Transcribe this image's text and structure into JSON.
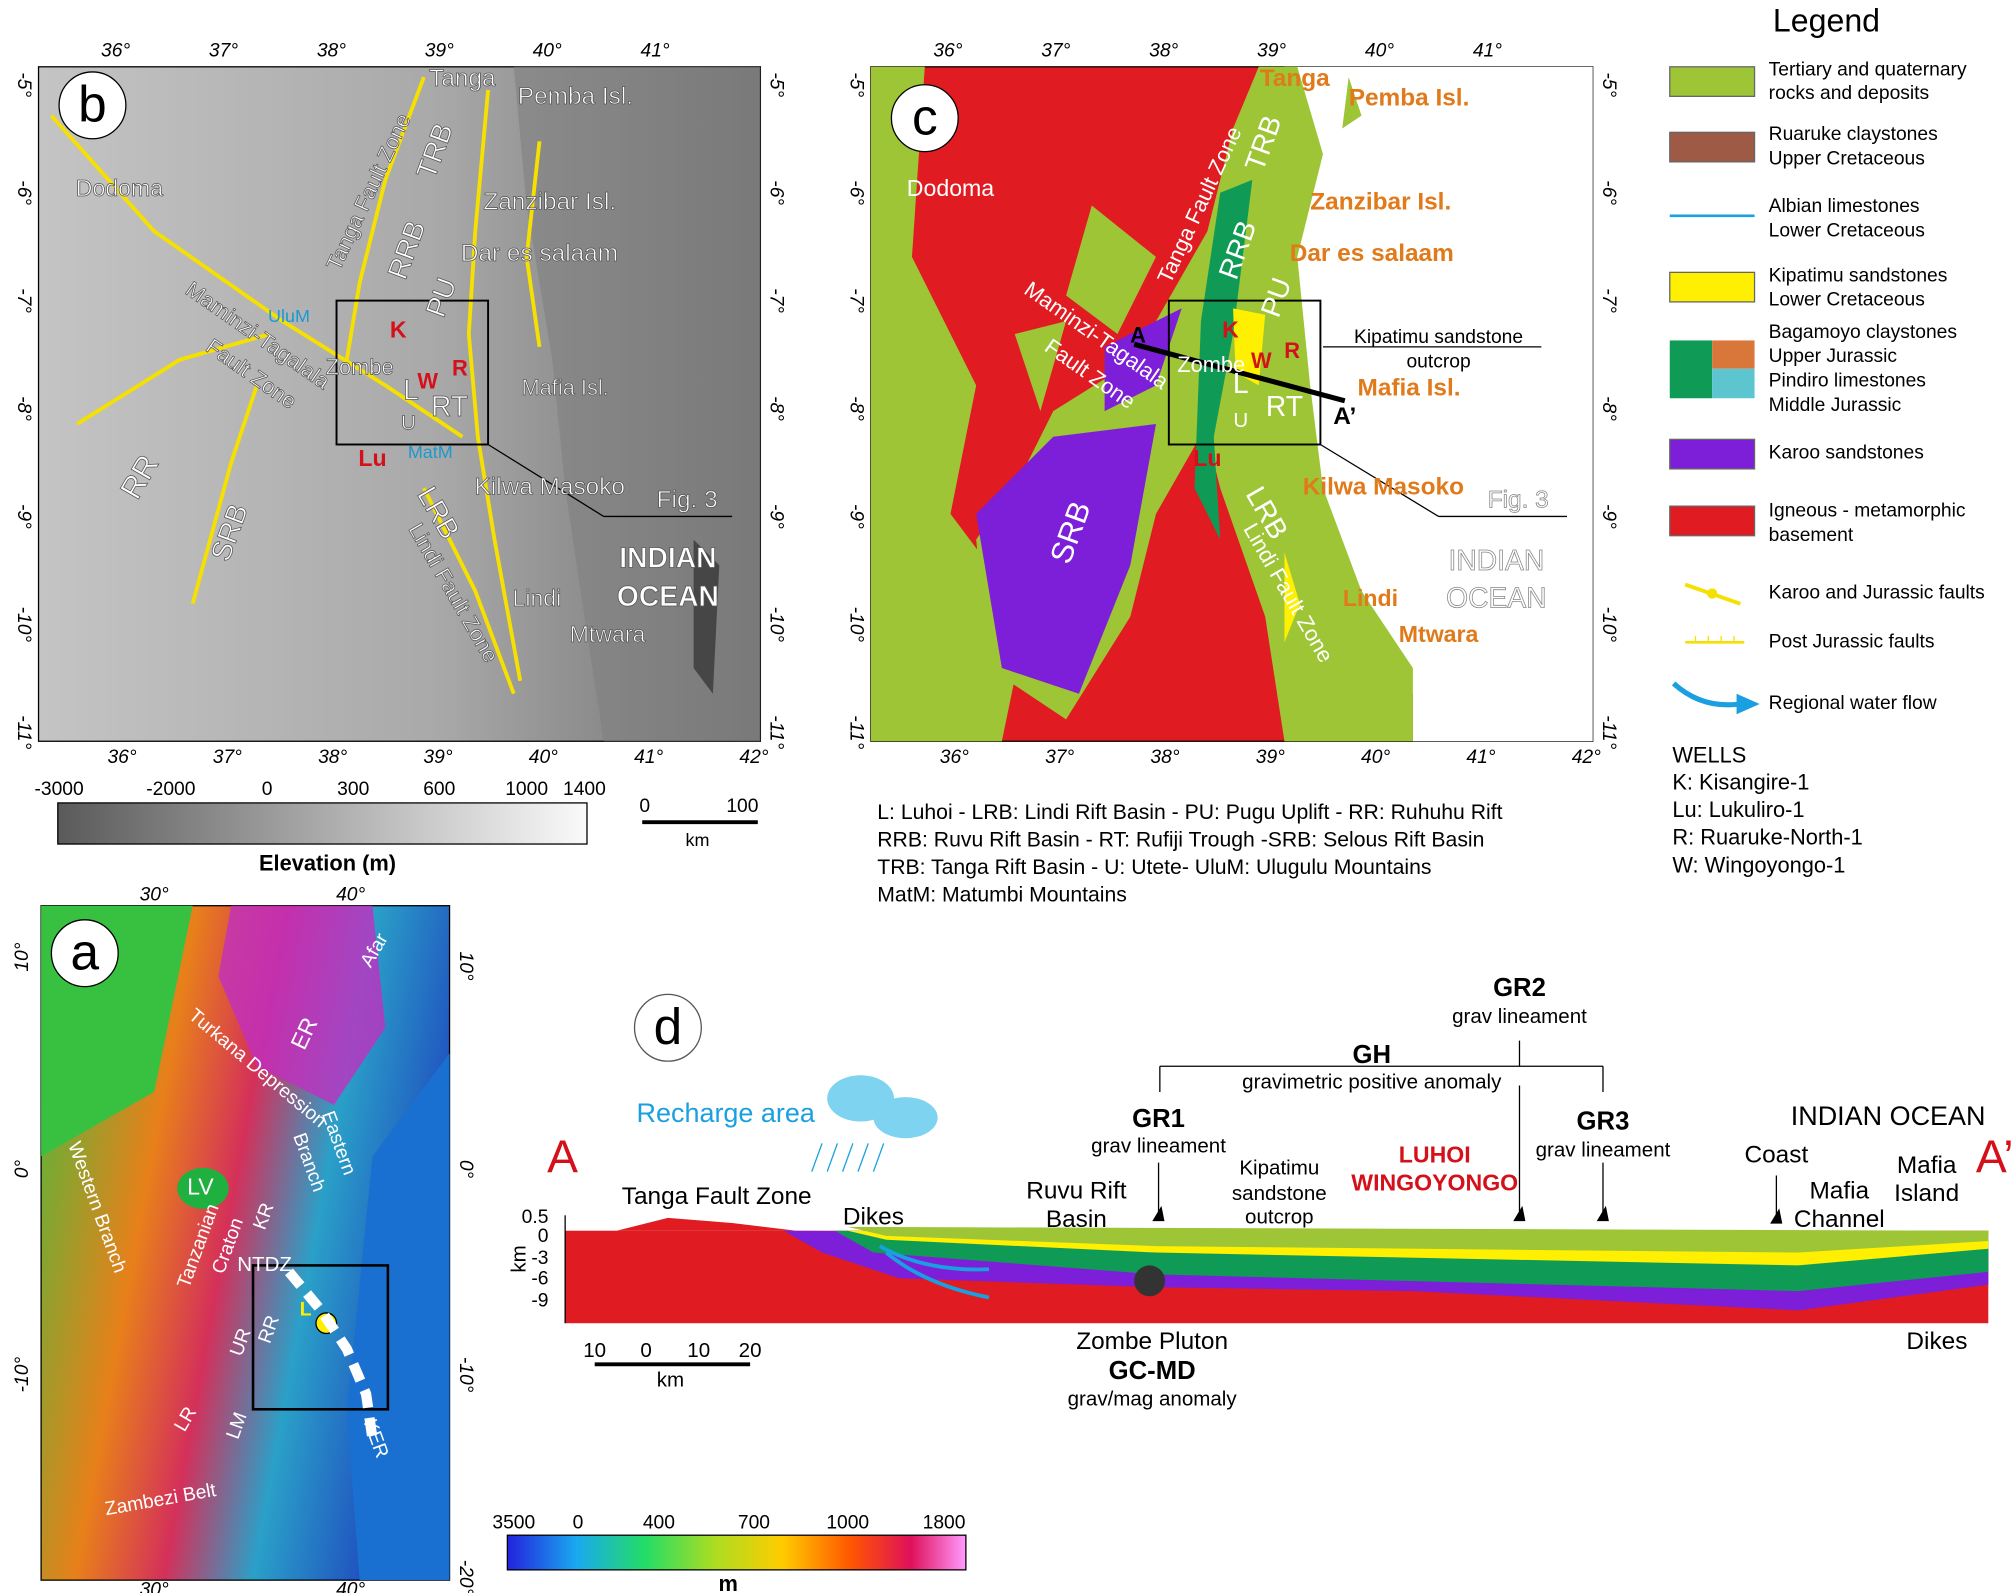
{
  "panel_b": {
    "letter": "b",
    "top_ticks": [
      "36°",
      "37°",
      "38°",
      "39°",
      "40°",
      "41°"
    ],
    "bottom_ticks": [
      "36°",
      "37°",
      "38°",
      "39°",
      "40°",
      "41°",
      "42°"
    ],
    "lat_ticks": [
      "-5°",
      "-6°",
      "-7°",
      "-8°",
      "-9°",
      "-10°",
      "-11°"
    ],
    "labels": [
      "Tanga",
      "Pemba Isl.",
      "TRB",
      "Tanga Fault Zone",
      "Dodoma",
      "Zanzibar Isl.",
      "RRB",
      "PU",
      "Dar es salaam",
      "UluM",
      "K",
      "Maminzi-Tagalala",
      "Fault Zone",
      "Zombe",
      "W",
      "R",
      "L",
      "RT",
      "U",
      "Mafia Isl.",
      "Lu",
      "MatM",
      "RR",
      "SRB",
      "Kilwa Masoko",
      "Fig. 3",
      "LRB",
      "Lindi Fault Zone",
      "INDIAN",
      "OCEAN",
      "Lindi",
      "Mtwara"
    ]
  },
  "elevation_scale": {
    "ticks": [
      "-3000",
      "-2000",
      "0",
      "300",
      "600",
      "1000",
      "1400"
    ],
    "title": "Elevation (m)"
  },
  "distance_scale": {
    "ticks": [
      "0",
      "100"
    ],
    "unit": "km"
  },
  "panel_c": {
    "letter": "c",
    "top_ticks": [
      "36°",
      "37°",
      "38°",
      "39°",
      "40°",
      "41°"
    ],
    "bottom_ticks": [
      "36°",
      "37°",
      "38°",
      "39°",
      "40°",
      "41°",
      "42°"
    ],
    "lat_ticks": [
      "-5°",
      "-6°",
      "-7°",
      "-8°",
      "-9°",
      "-10°",
      "-11°"
    ],
    "labels": [
      "Tanga",
      "Pemba Isl.",
      "TRB",
      "Tanga Fault Zone",
      "Dodoma",
      "Zanzibar Isl.",
      "RRB",
      "PU",
      "Dar es salaam",
      "K",
      "Maminzi-Tagalala",
      "Fault Zone",
      "A",
      "Zombe",
      "W",
      "R",
      "Kipatimu sandstone",
      "outcrop",
      "L",
      "RT",
      "U",
      "Mafia Isl.",
      "A’",
      "Lu",
      "SRB",
      "Kilwa Masoko",
      "Fig. 3",
      "LRB",
      "Lindi Fault Zone",
      "INDIAN",
      "OCEAN",
      "Lindi",
      "Mtwara"
    ]
  },
  "legend": {
    "title": "Legend",
    "items": [
      [
        "Tertiary and quaternary",
        "rocks and deposits"
      ],
      [
        "Ruaruke claystones",
        "Upper Cretaceous"
      ],
      [
        "Albian limestones",
        "Lower Cretaceous"
      ],
      [
        "Kipatimu sandstones",
        "Lower Cretaceous"
      ],
      [
        "Bagamoyo claystones",
        "Upper Jurassic",
        "Pindiro limestones",
        "Middle Jurassic"
      ],
      [
        "Karoo sandstones"
      ],
      [
        "Igneous - metamorphic",
        "basement"
      ],
      [
        "Karoo and Jurassic faults"
      ],
      [
        "Post Jurassic faults"
      ],
      [
        "Regional water flow"
      ]
    ]
  },
  "abbreviations": [
    "L: Luhoi - LRB: Lindi Rift Basin - PU: Pugu Uplift - RR: Ruhuhu Rift",
    "RRB: Ruvu Rift Basin - RT: Rufiji Trough -SRB: Selous Rift Basin",
    "TRB: Tanga Rift Basin - U: Utete- UluM: Ulugulu Mountains",
    "MatM: Matumbi Mountains"
  ],
  "wells": {
    "title": "WELLS",
    "items": [
      "K:  Kisangire-1",
      "Lu: Lukuliro-1",
      "R:  Ruaruke-North-1",
      "W:  Wingoyongo-1"
    ]
  },
  "panel_a": {
    "letter": "a",
    "top_ticks": [
      "30°",
      "40°"
    ],
    "bottom_ticks": [
      "30°",
      "40°"
    ],
    "left_ticks": [
      "10°",
      "0°",
      "-10°"
    ],
    "right_ticks": [
      "10°",
      "0°",
      "-10°",
      "-20°"
    ],
    "labels": [
      "Afar",
      "ER",
      "Turkana Depression",
      "Western Branch",
      "Eastern",
      "Branch",
      "LV",
      "KR",
      "Tanzanian",
      "Craton",
      "NTDZ",
      "UR",
      "RR",
      "L",
      "LR",
      "LM",
      "KER",
      "Zambezi Belt"
    ],
    "colorbar": {
      "ticks": [
        "3500",
        "0",
        "400",
        "700",
        "1000",
        "1800"
      ],
      "unit": "m"
    }
  },
  "panel_d": {
    "letter": "d",
    "labels": [
      "GR2",
      "grav lineament",
      "GH",
      "gravimetric positive anomaly",
      "Recharge area",
      "GR1",
      "grav lineament",
      "GR3",
      "grav lineament",
      "INDIAN OCEAN",
      "A",
      "A’",
      "Kipatimu",
      "sandstone",
      "outcrop",
      "LUHOI",
      "WINGOYONGO",
      "Coast",
      "Mafia",
      "Channel",
      "Mafia",
      "Island",
      "Tanga Fault Zone",
      "Ruvu Rift",
      "Basin",
      "Dikes",
      "Zombe Pluton",
      "GC-MD",
      "grav/mag anomaly",
      "Dikes"
    ],
    "axis_label": "km",
    "depth_ticks": [
      "0.5",
      "0",
      "-3",
      "-6",
      "-9"
    ],
    "scale_ticks": [
      "10",
      "0",
      "10",
      "20"
    ],
    "scale_unit": "km"
  }
}
